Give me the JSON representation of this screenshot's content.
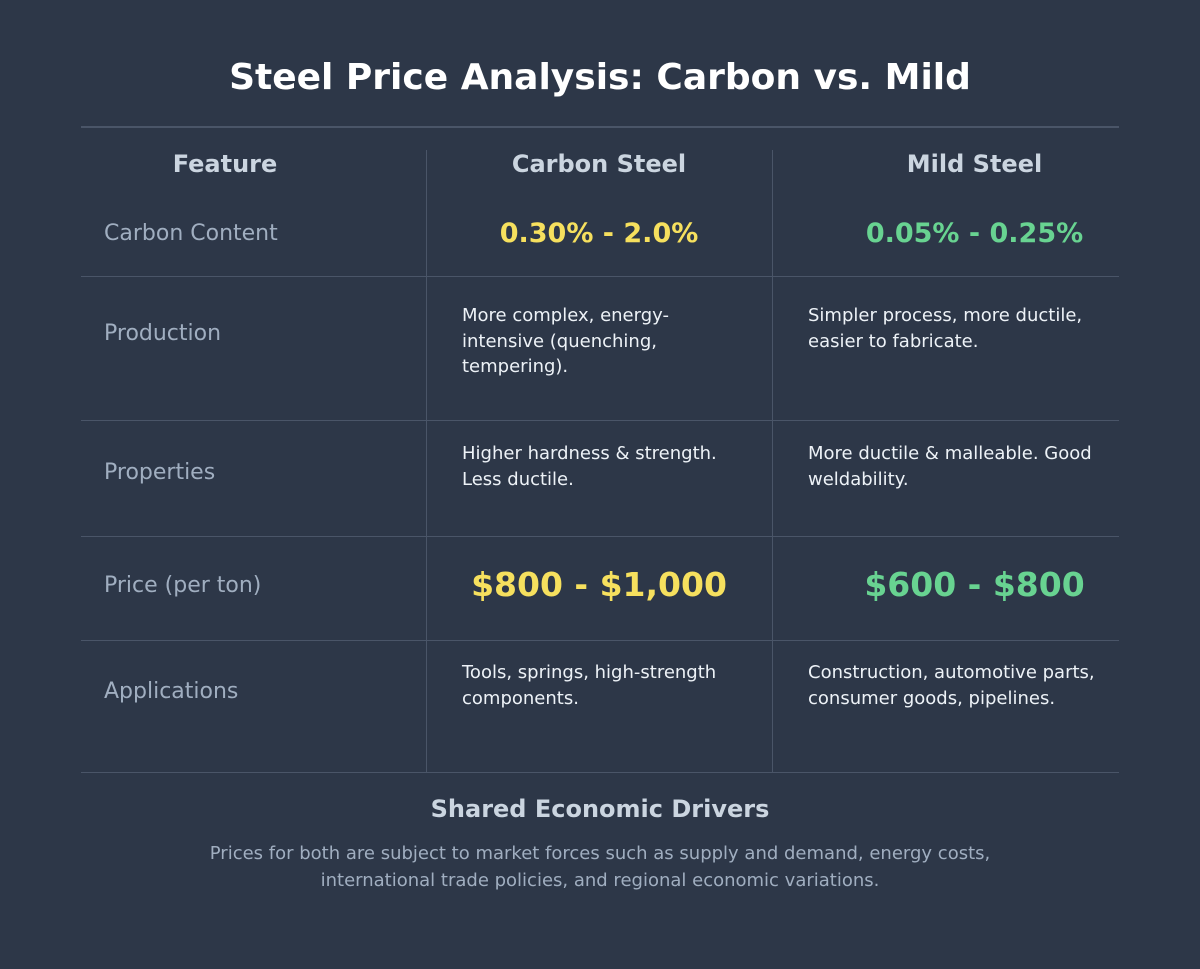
{
  "title": "Steel Price Analysis: Carbon vs. Mild",
  "headers": {
    "feature": "Feature",
    "carbon": "Carbon Steel",
    "mild": "Mild Steel"
  },
  "rows": {
    "carbon_content": {
      "label": "Carbon Content",
      "carbon": "0.30% - 2.0%",
      "mild": "0.05% - 0.25%"
    },
    "production": {
      "label": "Production",
      "carbon": "More complex, energy-intensive (quenching, tempering).",
      "mild": "Simpler process, more ductile, easier to fabricate."
    },
    "properties": {
      "label": "Properties",
      "carbon": "Higher hardness & strength. Less ductile.",
      "mild": "More ductile & malleable. Good weldability."
    },
    "price": {
      "label": "Price (per ton)",
      "carbon": "$800 - $1,000",
      "mild": "$600 - $800"
    },
    "applications": {
      "label": "Applications",
      "carbon": "Tools, springs, high-strength components.",
      "mild": "Construction, automotive parts, consumer goods, pipelines."
    }
  },
  "footer": {
    "heading": "Shared Economic Drivers",
    "text": "Prices for both are subject to market forces such as supply and demand, energy costs, international trade policies, and regional economic variations."
  },
  "colors": {
    "background": "#2d3748",
    "carbon_accent": "#f6e05e",
    "mild_accent": "#68d391"
  }
}
